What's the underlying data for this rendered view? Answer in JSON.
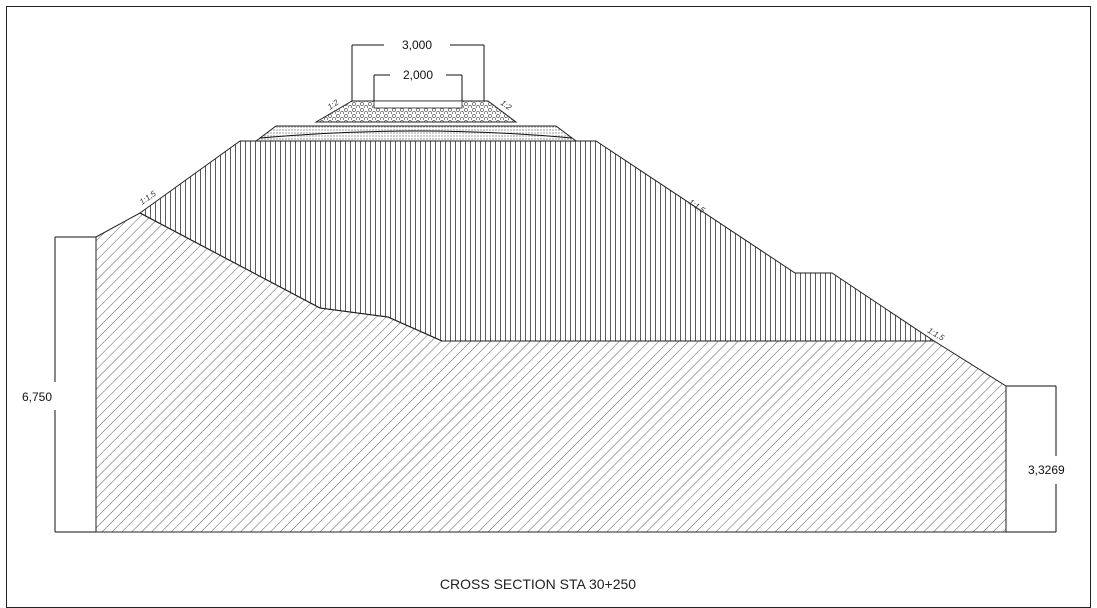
{
  "title": "CROSS SECTION STA 30+250",
  "dimensions": {
    "top_width_outer": "3,000",
    "top_width_inner": "2,000",
    "left_height": "6,750",
    "right_height": "3,3269"
  },
  "slopes": {
    "pavement_left": "1:2",
    "pavement_right": "1:2",
    "embankment_upper_left": "1:1,5",
    "embankment_upper_right": "1:1,5",
    "embankment_lower_right": "1:1,5"
  },
  "colors": {
    "line": "#111111",
    "border": "#222222",
    "background": "#ffffff"
  }
}
